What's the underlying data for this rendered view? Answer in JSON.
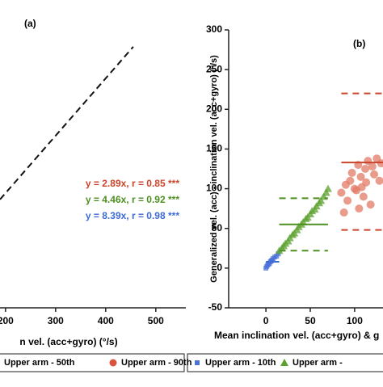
{
  "chart_data": [
    {
      "type": "line",
      "title": "(a)",
      "xlabel": "n vel. (acc+gyro) (°/s)",
      "x": [
        189,
        455
      ],
      "series": [
        {
          "color": "#111111",
          "dashed": true,
          "values": [
            546,
            1315
          ]
        }
      ],
      "xlim": [
        189,
        560
      ],
      "xticks": [
        200,
        300,
        400,
        500
      ],
      "ylim": [
        0,
        1400
      ],
      "annotations": [
        {
          "text": "y = 2.89x, r = 0.85 ***",
          "color": "#c9442a"
        },
        {
          "text": "y = 4.46x, r = 0.92 ***",
          "color": "#4e8f22"
        },
        {
          "text": "y = 8.39x, r = 0.98 ***",
          "color": "#3d6ad6"
        }
      ],
      "legend": [
        {
          "name": "Upper arm - 50th",
          "color": "#4e8f22"
        },
        {
          "name": "Upper arm - 90th",
          "color": "#d9543c"
        }
      ]
    },
    {
      "type": "scatter",
      "title": "(b)",
      "xlabel": "Mean inclination vel. (acc+gyro) & g",
      "ylabel": "Generalized vel. (acc) - inclination vel. (acc+gyro) (°/s)",
      "xlim": [
        -42,
        132
      ],
      "xticks": [
        0,
        50,
        100
      ],
      "ylim": [
        -50,
        300
      ],
      "yticks": [
        -50,
        0,
        50,
        100,
        150,
        200,
        250,
        300
      ],
      "series": [
        {
          "name": "Upper arm - 10th",
          "color": "#4a72d9",
          "marker": "square",
          "x": [
            0,
            1,
            2,
            3,
            4,
            5,
            6,
            7,
            8,
            10,
            12,
            14
          ],
          "values": [
            0,
            2,
            4,
            5,
            6,
            8,
            9,
            10,
            12,
            14,
            15,
            18
          ]
        },
        {
          "name": "Upper arm -",
          "color": "#5aa02c",
          "marker": "triangle",
          "x": [
            15,
            18,
            20,
            22,
            25,
            27,
            30,
            32,
            35,
            37,
            40,
            42,
            45,
            47,
            50,
            52,
            55,
            57,
            60,
            62,
            65,
            68,
            70
          ],
          "values": [
            22,
            25,
            28,
            31,
            34,
            38,
            42,
            44,
            48,
            52,
            55,
            58,
            62,
            64,
            68,
            72,
            74,
            78,
            82,
            85,
            90,
            95,
            100
          ]
        },
        {
          "name": "Upper arm - 90th",
          "color": "#e27a66",
          "marker": "circle",
          "x": [
            85,
            88,
            90,
            92,
            95,
            97,
            100,
            102,
            104,
            105,
            107,
            108,
            110,
            112,
            113,
            115,
            118,
            120,
            122,
            125,
            128,
            130
          ],
          "values": [
            95,
            70,
            105,
            85,
            110,
            120,
            100,
            98,
            130,
            75,
            115,
            102,
            90,
            125,
            108,
            135,
            80,
            128,
            118,
            138,
            110,
            132
          ]
        }
      ],
      "reference_lines": [
        {
          "color": "#3d6ad6",
          "dashed": false,
          "x": [
            0,
            15
          ],
          "y": 8
        },
        {
          "color": "#4e8f22",
          "dashed": true,
          "x": [
            15,
            70
          ],
          "y": 88
        },
        {
          "color": "#4e8f22",
          "dashed": false,
          "x": [
            15,
            70
          ],
          "y": 55
        },
        {
          "color": "#4e8f22",
          "dashed": true,
          "x": [
            15,
            70
          ],
          "y": 22
        },
        {
          "color": "#c9442a",
          "dashed": true,
          "x": [
            85,
            140
          ],
          "y": 220
        },
        {
          "color": "#c9442a",
          "dashed": false,
          "x": [
            85,
            140
          ],
          "y": 133
        },
        {
          "color": "#c9442a",
          "dashed": true,
          "x": [
            85,
            140
          ],
          "y": 48
        }
      ]
    }
  ]
}
